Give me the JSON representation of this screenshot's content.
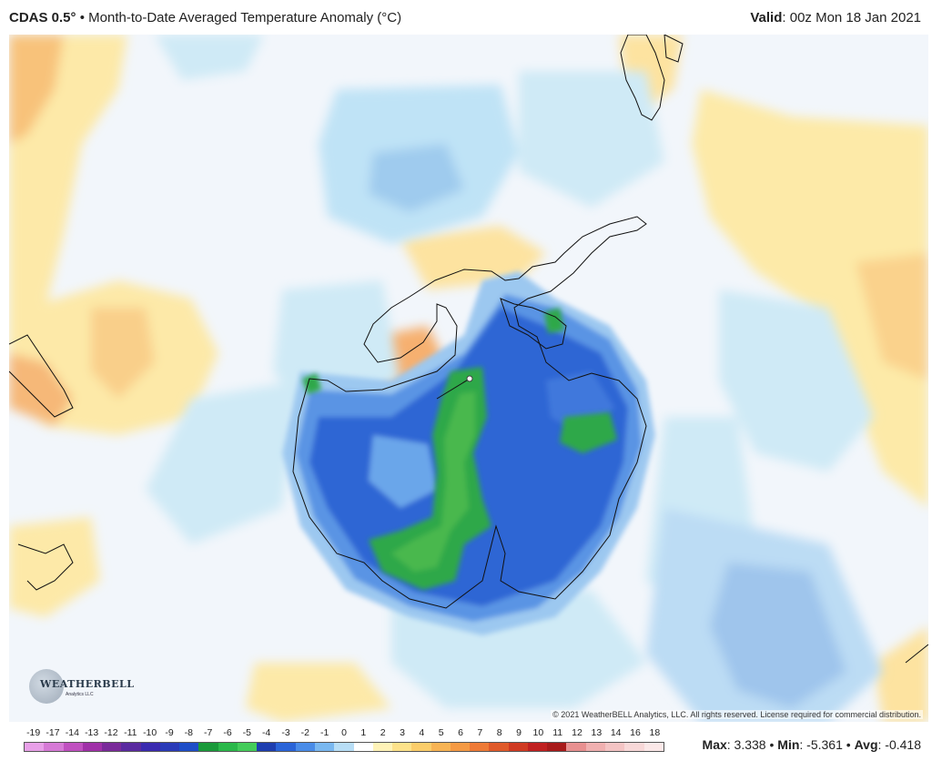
{
  "header": {
    "model": "CDAS 0.5",
    "degree": "°",
    "separator": "•",
    "product": "Month-to-Date Averaged Temperature Anomaly (°C)",
    "valid_label": "Valid",
    "valid_value": ": 00z Mon 18 Jan 2021"
  },
  "map": {
    "region": "Antarctica / Southern Hemisphere polar view",
    "copyright": "© 2021 WeatherBELL Analytics, LLC. All rights reserved. License required for commercial distribution.",
    "logo_text": "WEATHERBELL",
    "logo_sub": "Analytics LLC"
  },
  "colorbar": {
    "labels": [
      "-19",
      "-17",
      "-14",
      "-13",
      "-12",
      "-11",
      "-10",
      "-9",
      "-8",
      "-7",
      "-6",
      "-5",
      "-4",
      "-3",
      "-2",
      "-1",
      "0",
      "1",
      "2",
      "3",
      "4",
      "5",
      "6",
      "7",
      "8",
      "9",
      "10",
      "11",
      "12",
      "13",
      "14",
      "16",
      "18"
    ],
    "colors": [
      "#e8a0e8",
      "#d67ad6",
      "#c050c0",
      "#a030a8",
      "#7a2a9a",
      "#5a2aa0",
      "#3a2ab0",
      "#2a3ab8",
      "#1e4ec8",
      "#1a9a3a",
      "#2ab84a",
      "#44cc5a",
      "#1e3eb0",
      "#2a64d8",
      "#4a8ce8",
      "#7ab8f0",
      "#b8def6",
      "#ffffff",
      "#fff3b8",
      "#fde28a",
      "#fbcd6a",
      "#f8b454",
      "#f59a44",
      "#ee7a36",
      "#e05a2a",
      "#d03a22",
      "#c02020",
      "#a81a1a",
      "#e89090",
      "#f0b0b0",
      "#f4c4c4",
      "#f8d8d8",
      "#fbe8e8"
    ]
  },
  "stats": {
    "max_label": "Max",
    "max_value": ": 3.338",
    "sep1": " • ",
    "min_label": "Min",
    "min_value": ": -5.361",
    "sep2": " • ",
    "avg_label": "Avg",
    "avg_value": ": -0.418"
  }
}
